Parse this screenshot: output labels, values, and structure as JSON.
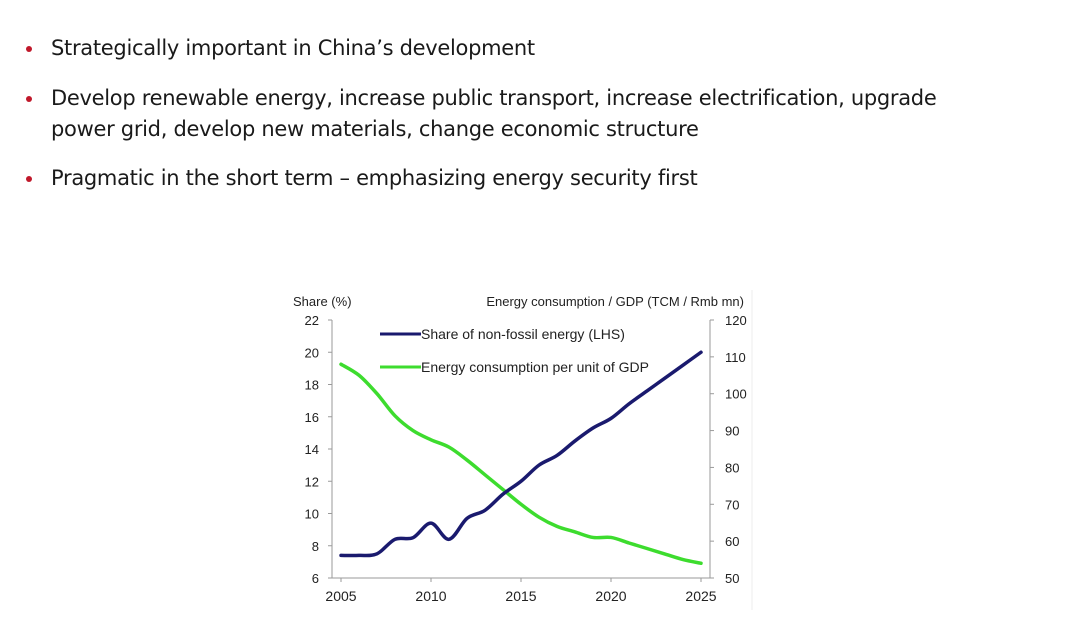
{
  "bullets": [
    {
      "lines": [
        "Strategically important in China’s development"
      ]
    },
    {
      "lines": [
        "Develop renewable energy, increase public transport, increase electrification, upgrade",
        "power grid, develop new materials, change economic structure"
      ]
    },
    {
      "lines": [
        "Pragmatic in the short term – emphasizing energy security first"
      ]
    }
  ],
  "colors": {
    "bullet": "#c0182a",
    "series_nonfossil": "#1a1a6e",
    "series_energy": "#3ddc2e"
  },
  "chart_data": {
    "type": "line",
    "title": "",
    "ylabel_left": "Share (%)",
    "ylabel_right": "Energy consumption  / GDP (TCM / Rmb  mn)",
    "xlabel": "",
    "x": [
      2005,
      2006,
      2007,
      2008,
      2009,
      2010,
      2011,
      2012,
      2013,
      2014,
      2015,
      2016,
      2017,
      2018,
      2019,
      2020,
      2021,
      2022,
      2023,
      2024,
      2025
    ],
    "xlim": [
      2005,
      2025
    ],
    "x_ticks": [
      "2005",
      "2010",
      "2015",
      "2020",
      "2025"
    ],
    "ylim_left": [
      6,
      22
    ],
    "y_ticks_left": [
      "6",
      "8",
      "10",
      "12",
      "14",
      "16",
      "18",
      "20",
      "22"
    ],
    "ylim_right": [
      50,
      120
    ],
    "y_ticks_right": [
      "50",
      "60",
      "70",
      "80",
      "90",
      "100",
      "110",
      "120"
    ],
    "legend_position": "top-left",
    "grid": false,
    "series": [
      {
        "name": "Share of non-fossil energy (LHS)",
        "axis": "left",
        "values": [
          7.4,
          7.4,
          7.5,
          8.4,
          8.5,
          9.4,
          8.4,
          9.7,
          10.2,
          11.2,
          12.0,
          13.0,
          13.6,
          14.5,
          15.3,
          15.9,
          16.8,
          17.6,
          18.4,
          19.2,
          20.0
        ]
      },
      {
        "name": "Energy consumption per unit of GDP",
        "axis": "right",
        "values": [
          108,
          105,
          100,
          94,
          90,
          87.5,
          85.5,
          82,
          78,
          74,
          70,
          66.5,
          64,
          62.5,
          61,
          61,
          59.5,
          58,
          56.5,
          55,
          54
        ]
      }
    ]
  }
}
